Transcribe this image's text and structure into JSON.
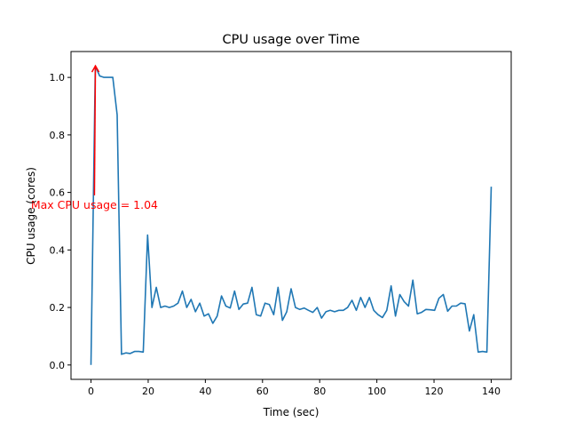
{
  "chart_data": {
    "type": "line",
    "title": "CPU usage over Time",
    "xlabel": "Time (sec)",
    "ylabel": "CPU usage (cores)",
    "xlim": [
      -7,
      147
    ],
    "ylim": [
      -0.05,
      1.09
    ],
    "xticks": [
      0,
      20,
      40,
      60,
      80,
      100,
      120,
      140
    ],
    "xtick_labels": [
      "0",
      "20",
      "40",
      "60",
      "80",
      "100",
      "120",
      "140"
    ],
    "yticks": [
      0.0,
      0.2,
      0.4,
      0.6,
      0.8,
      1.0
    ],
    "ytick_labels": [
      "0.0",
      "0.2",
      "0.4",
      "0.6",
      "0.8",
      "1.0"
    ],
    "grid": false,
    "line_color": "#1f77b4",
    "x_range": [
      0,
      140
    ],
    "series": [
      {
        "name": "CPU usage",
        "values": [
          0,
          1.04,
          1.005,
          1.0,
          1.0,
          1.0,
          0.87,
          0.037,
          0.042,
          0.04,
          0.047,
          0.047,
          0.045,
          0.452,
          0.2,
          0.27,
          0.2,
          0.205,
          0.2,
          0.205,
          0.215,
          0.257,
          0.2,
          0.228,
          0.185,
          0.215,
          0.17,
          0.178,
          0.145,
          0.17,
          0.24,
          0.205,
          0.198,
          0.257,
          0.193,
          0.212,
          0.215,
          0.27,
          0.175,
          0.17,
          0.215,
          0.21,
          0.175,
          0.27,
          0.155,
          0.185,
          0.265,
          0.2,
          0.193,
          0.198,
          0.19,
          0.183,
          0.2,
          0.163,
          0.185,
          0.19,
          0.185,
          0.19,
          0.19,
          0.2,
          0.225,
          0.19,
          0.235,
          0.2,
          0.235,
          0.19,
          0.175,
          0.165,
          0.19,
          0.275,
          0.17,
          0.245,
          0.22,
          0.205,
          0.295,
          0.178,
          0.183,
          0.193,
          0.192,
          0.19,
          0.232,
          0.245,
          0.187,
          0.205,
          0.205,
          0.215,
          0.213,
          0.118,
          0.175,
          0.045,
          0.047,
          0.045,
          0.62
        ]
      }
    ],
    "annotation": {
      "text": "Max CPU usage = 1.04",
      "color": "#ff0000",
      "text_at": [
        1.2,
        0.555
      ],
      "arrow_from": [
        1.2,
        0.59
      ],
      "arrow_to": [
        1.55,
        1.04
      ]
    }
  }
}
